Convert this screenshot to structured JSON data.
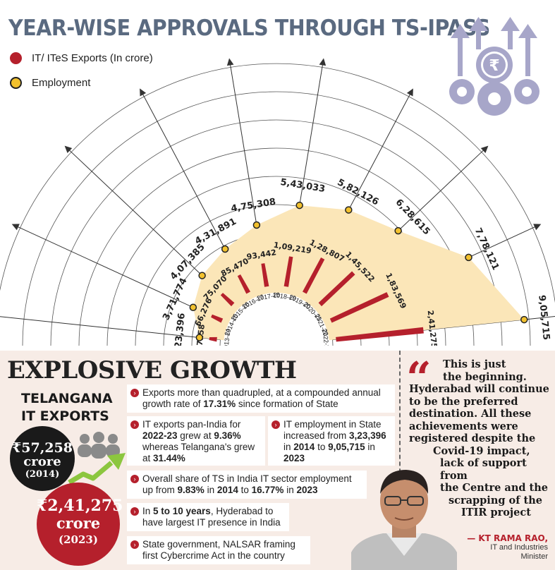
{
  "title": "YEAR-WISE APPROVALS THROUGH TS-IPASS",
  "legend": [
    {
      "label": "IT/ ITeS Exports (In crore)",
      "color": "#b5202c"
    },
    {
      "label": "Employment",
      "color": "#f2c12e"
    }
  ],
  "chart_data": {
    "type": "bar",
    "categories": [
      "2013-14",
      "2014-15",
      "2015-16",
      "2016-17",
      "2017-18",
      "2018-19",
      "2019-20",
      "2020-21",
      "2021-22",
      "2022-23"
    ],
    "series": [
      {
        "name": "IT/ ITeS Exports (In crore)",
        "type": "bar",
        "color": "#b5202c",
        "values": [
          57258,
          66276,
          75070,
          85470,
          93442,
          109219,
          128807,
          145522,
          183569,
          241275
        ],
        "labels": [
          "57258",
          "66,276",
          "75,070",
          "85,470",
          "93,442",
          "1,09,219",
          "1,28,807",
          "1,45,522",
          "1,83,569",
          "2,41,275"
        ]
      },
      {
        "name": "Employment",
        "type": "area",
        "color": "#f2c12e",
        "values": [
          323396,
          371774,
          407385,
          431891,
          475308,
          543033,
          582126,
          628615,
          778121,
          905715
        ],
        "labels": [
          "3,23,396",
          "3,71,774",
          "4,07,385",
          "4,31,891",
          "4,75,308",
          "5,43,033",
          "5,82,126",
          "6,28,615",
          "7,78,121",
          "9,05,715"
        ]
      }
    ],
    "layout": "radial-semicircle"
  },
  "panel": {
    "headline": "EXPLOSIVE GROWTH",
    "telangana": [
      "TELANGANA",
      "IT EXPORTS"
    ],
    "stat_2014": {
      "value": "₹57,258",
      "unit": "crore",
      "year": "(2014)"
    },
    "stat_2023": {
      "value": "₹2,41,275",
      "unit": "crore",
      "year": "(2023)"
    },
    "bullets": {
      "b1": [
        "Exports more than quadrupled, at a compounded annual growth rate of ",
        "17.31%",
        " since formation of State"
      ],
      "b2": [
        "IT exports pan-India for ",
        "2022-23",
        " grew at ",
        "9.36%",
        " whereas Telangana's grew at ",
        "31.44%"
      ],
      "b3": [
        "IT employment in State increased from ",
        "3,23,396",
        " in ",
        "2014",
        " to ",
        "9,05,715",
        " in ",
        "2023"
      ],
      "b4": [
        "Overall share of TS in India IT sector employment up from ",
        "9.83%",
        " in ",
        "2014",
        " to ",
        "16.77%",
        " in ",
        "2023"
      ],
      "b5": [
        "In ",
        "5 to 10 years",
        ", Hyderabad to have largest IT presence in India"
      ],
      "b6": [
        "State government, NALSAR framing first Cybercrime Act in the country"
      ]
    },
    "quote_lines": [
      "This is just",
      "the beginning.",
      "Hyderabad will continue",
      "to be the preferred",
      "destination. All these",
      "achievements were",
      "registered despite the",
      "Covid-19 impact,",
      "lack of support from",
      "the Centre and the",
      "scrapping of the",
      "ITIR project"
    ],
    "author_name": "— KT RAMA RAO,",
    "author_role": [
      "IT and Industries",
      "Minister"
    ]
  }
}
